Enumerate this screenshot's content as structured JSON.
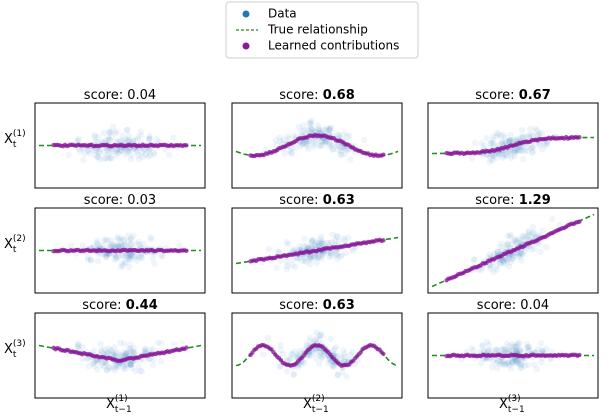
{
  "legend": {
    "items": [
      "Data",
      "True relationship",
      "Learned contributions"
    ]
  },
  "score_prefix": "score:",
  "panels": [
    {
      "score": 0.04,
      "bold": false
    },
    {
      "score": 0.68,
      "bold": true
    },
    {
      "score": 0.67,
      "bold": true
    },
    {
      "score": 0.03,
      "bold": false
    },
    {
      "score": 0.63,
      "bold": true
    },
    {
      "score": 1.29,
      "bold": true
    },
    {
      "score": 0.44,
      "bold": true
    },
    {
      "score": 0.63,
      "bold": true
    },
    {
      "score": 0.04,
      "bold": false
    }
  ],
  "row_labels": [
    {
      "base": "X",
      "sub": "t",
      "sup": "(1)"
    },
    {
      "base": "X",
      "sub": "t",
      "sup": "(2)"
    },
    {
      "base": "X",
      "sub": "t",
      "sup": "(3)"
    }
  ],
  "column_labels": [
    {
      "base": "X",
      "sub": "t−1",
      "sup": "(1)"
    },
    {
      "base": "X",
      "sub": "t−1",
      "sup": "(2)"
    },
    {
      "base": "X",
      "sub": "t−1",
      "sup": "(3)"
    }
  ],
  "colors": {
    "data": "#1f77b4",
    "true": "#228b22",
    "learned": "#8b1a9b"
  }
}
